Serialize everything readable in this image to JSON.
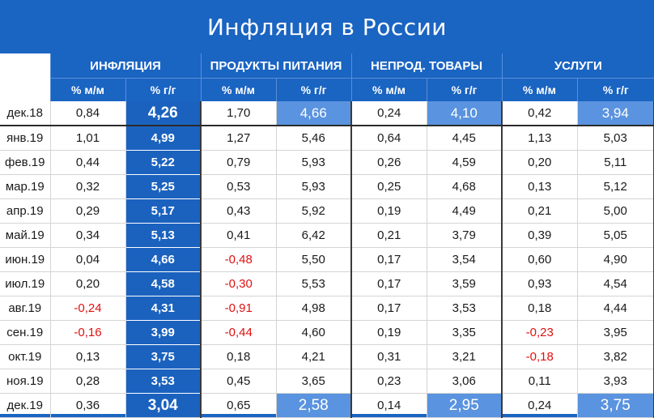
{
  "title": "Инфляция в России",
  "groups": [
    "ИНФЛЯЦИЯ",
    "ПРОДУКТЫ ПИТАНИЯ",
    "НЕПРОД. ТОВАРЫ",
    "УСЛУГИ"
  ],
  "subheaders": [
    "% м/м",
    "% г/г",
    "% м/м",
    "% г/г",
    "% м/м",
    "% г/г",
    "% м/м",
    "% г/г"
  ],
  "rows": [
    {
      "label": "дек.18",
      "values": [
        "0,84",
        "4,26",
        "1,70",
        "4,66",
        "0,24",
        "4,10",
        "0,42",
        "3,94"
      ]
    },
    {
      "label": "янв.19",
      "values": [
        "1,01",
        "4,99",
        "1,27",
        "5,46",
        "0,64",
        "4,45",
        "1,13",
        "5,03"
      ]
    },
    {
      "label": "фев.19",
      "values": [
        "0,44",
        "5,22",
        "0,79",
        "5,93",
        "0,26",
        "4,59",
        "0,20",
        "5,11"
      ]
    },
    {
      "label": "мар.19",
      "values": [
        "0,32",
        "5,25",
        "0,53",
        "5,93",
        "0,25",
        "4,68",
        "0,13",
        "5,12"
      ]
    },
    {
      "label": "апр.19",
      "values": [
        "0,29",
        "5,17",
        "0,43",
        "5,92",
        "0,19",
        "4,49",
        "0,21",
        "5,00"
      ]
    },
    {
      "label": "май.19",
      "values": [
        "0,34",
        "5,13",
        "0,41",
        "6,42",
        "0,21",
        "3,79",
        "0,39",
        "5,05"
      ]
    },
    {
      "label": "июн.19",
      "values": [
        "0,04",
        "4,66",
        "-0,48",
        "5,50",
        "0,17",
        "3,54",
        "0,60",
        "4,90"
      ]
    },
    {
      "label": "июл.19",
      "values": [
        "0,20",
        "4,58",
        "-0,30",
        "5,53",
        "0,17",
        "3,59",
        "0,93",
        "4,54"
      ]
    },
    {
      "label": "авг.19",
      "values": [
        "-0,24",
        "4,31",
        "-0,91",
        "4,98",
        "0,17",
        "3,53",
        "0,18",
        "4,44"
      ]
    },
    {
      "label": "сен.19",
      "values": [
        "-0,16",
        "3,99",
        "-0,44",
        "4,60",
        "0,19",
        "3,35",
        "-0,23",
        "3,95"
      ]
    },
    {
      "label": "окт.19",
      "values": [
        "0,13",
        "3,75",
        "0,18",
        "4,21",
        "0,31",
        "3,21",
        "-0,18",
        "3,82"
      ]
    },
    {
      "label": "ноя.19",
      "values": [
        "0,28",
        "3,53",
        "0,45",
        "3,65",
        "0,23",
        "3,06",
        "0,11",
        "3,93"
      ]
    },
    {
      "label": "дек.19",
      "values": [
        "0,36",
        "3,04",
        "0,65",
        "2,58",
        "0,14",
        "2,95",
        "0,24",
        "3,75"
      ]
    }
  ],
  "colors": {
    "header_blue": "#1a64c2",
    "highlight_light": "#5a93df",
    "negative_red": "#e01010"
  }
}
